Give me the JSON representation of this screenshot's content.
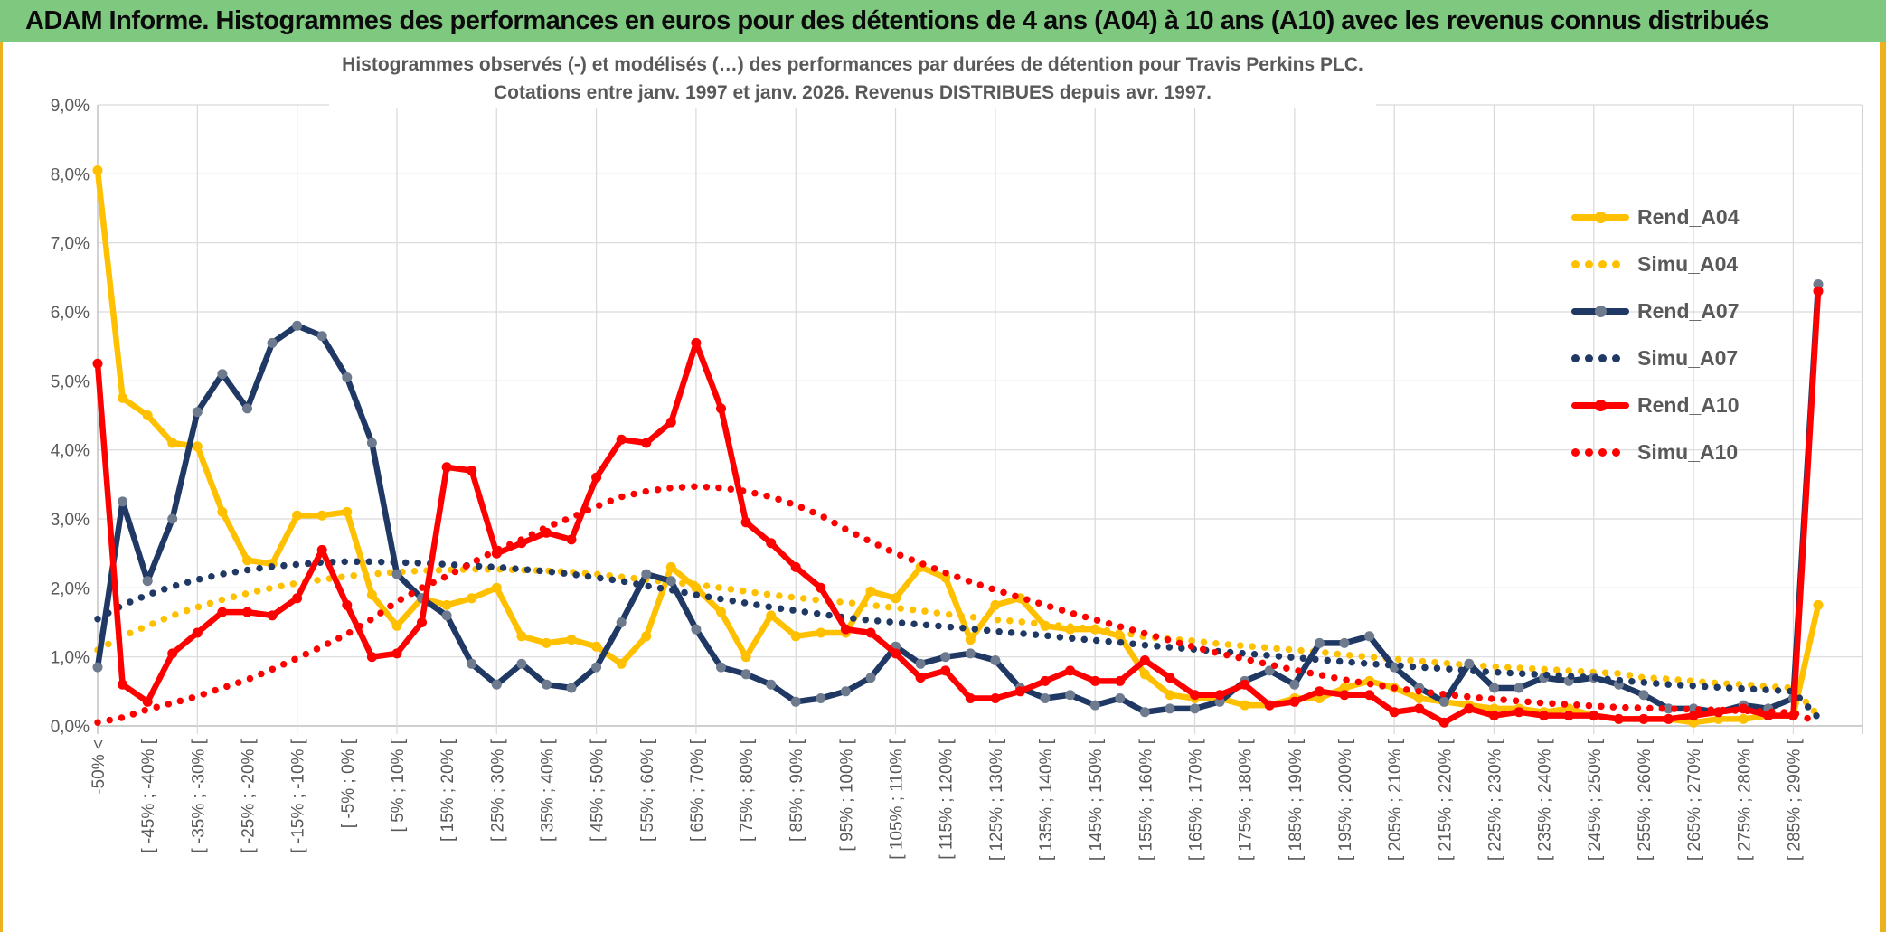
{
  "banner": {
    "title": "ADAM Informe. Histogrammes des performances en euros pour des détentions de 4 ans (A04) à 10 ans (A10) avec les revenus connus distribués",
    "bg_color": "#7EC87F",
    "frame_color": "#EDB120"
  },
  "chart_data": {
    "type": "line",
    "title_line1": "Histogrammes observés (-) et modélisés (…) des performances par durées de détention pour Travis Perkins PLC.",
    "title_line2": "Cotations entre janv. 1997 et janv. 2026. Revenus DISTRIBUES depuis avr. 1997.",
    "ylim": [
      0,
      9
    ],
    "grid": true,
    "legend_position": "upper-right-inside",
    "y_tick_labels": [
      "0,0%",
      "1,0%",
      "2,0%",
      "3,0%",
      "4,0%",
      "5,0%",
      "6,0%",
      "7,0%",
      "8,0%",
      "9,0%"
    ],
    "points_per_series": 70,
    "x_label_every": 2,
    "x_tick_labels": [
      "-50% <",
      "[ -45% ; -40% [",
      "[ -35% ; -30% [",
      "[ -25% ; -20% [",
      "[ -15% ; -10% [",
      "[ -5% ; 0% [",
      "[ 5% ; 10% [",
      "[ 15% ; 20% [",
      "[ 25% ; 30% [",
      "[ 35% ; 40% [",
      "[ 45% ; 50% [",
      "[ 55% ; 60% [",
      "[ 65% ; 70% [",
      "[ 75% ; 80% [",
      "[ 85% ; 90% [",
      "[ 95% ; 100% [",
      "[ 105% ; 110% [",
      "[ 115% ; 120% [",
      "[ 125% ; 130% [",
      "[ 135% ; 140% [",
      "[ 145% ; 150% [",
      "[ 155% ; 160% [",
      "[ 165% ; 170% [",
      "[ 175% ; 180% [",
      "[ 185% ; 190% [",
      "[ 195% ; 200% [",
      "[ 205% ; 210% [",
      "[ 215% ; 220% [",
      "[ 225% ; 230% [",
      "[ 235% ; 240% [",
      "[ 245% ; 250% [",
      "[ 255% ; 260% [",
      "[ 265% ; 270% [",
      "[ 275% ; 280% [",
      "[ 285% ; 290% ["
    ],
    "colors": {
      "grid": "#D9D9D9",
      "axis": "#BFBFBF",
      "text": "#595959"
    },
    "series": [
      {
        "name": "Rend_A04",
        "style": "solid",
        "color": "#FFC000",
        "marker_color": "#FFC000",
        "values": [
          8.05,
          4.75,
          4.5,
          4.1,
          4.05,
          3.1,
          2.4,
          2.35,
          3.05,
          3.05,
          3.1,
          1.9,
          1.45,
          1.85,
          1.75,
          1.85,
          2.0,
          1.3,
          1.2,
          1.25,
          1.15,
          0.9,
          1.3,
          2.3,
          2.0,
          1.65,
          1.0,
          1.6,
          1.3,
          1.35,
          1.35,
          1.95,
          1.85,
          2.3,
          2.15,
          1.25,
          1.75,
          1.85,
          1.45,
          1.4,
          1.4,
          1.3,
          0.75,
          0.45,
          0.4,
          0.4,
          0.3,
          0.3,
          0.4,
          0.4,
          0.55,
          0.65,
          0.55,
          0.4,
          0.35,
          0.3,
          0.25,
          0.25,
          0.2,
          0.25,
          0.15,
          0.1,
          0.1,
          0.1,
          0.05,
          0.1,
          0.1,
          0.15,
          0.15,
          1.75
        ]
      },
      {
        "name": "Simu_A04",
        "style": "dotted",
        "color": "#FFC000",
        "values": [
          1.1,
          1.3,
          1.45,
          1.6,
          1.72,
          1.83,
          1.92,
          2.0,
          2.07,
          2.12,
          2.17,
          2.2,
          2.23,
          2.25,
          2.26,
          2.27,
          2.27,
          2.26,
          2.25,
          2.23,
          2.2,
          2.16,
          2.12,
          2.08,
          2.05,
          2.0,
          1.95,
          1.9,
          1.86,
          1.82,
          1.79,
          1.75,
          1.71,
          1.67,
          1.62,
          1.58,
          1.54,
          1.51,
          1.47,
          1.44,
          1.4,
          1.36,
          1.29,
          1.26,
          1.23,
          1.19,
          1.16,
          1.13,
          1.1,
          1.07,
          1.03,
          1.0,
          0.97,
          0.94,
          0.91,
          0.88,
          0.86,
          0.84,
          0.82,
          0.8,
          0.78,
          0.76,
          0.7,
          0.68,
          0.65,
          0.62,
          0.6,
          0.57,
          0.55,
          0.15
        ]
      },
      {
        "name": "Rend_A07",
        "style": "solid",
        "color": "#1F3864",
        "marker_color": "#6E7B8F",
        "values": [
          0.85,
          3.25,
          2.1,
          3.0,
          4.55,
          5.1,
          4.6,
          5.55,
          5.8,
          5.65,
          5.05,
          4.1,
          2.2,
          1.85,
          1.6,
          0.9,
          0.6,
          0.9,
          0.6,
          0.55,
          0.85,
          1.5,
          2.2,
          2.1,
          1.4,
          0.85,
          0.75,
          0.6,
          0.35,
          0.4,
          0.5,
          0.7,
          1.15,
          0.9,
          1.0,
          1.05,
          0.95,
          0.55,
          0.4,
          0.45,
          0.3,
          0.4,
          0.2,
          0.25,
          0.25,
          0.35,
          0.65,
          0.8,
          0.6,
          1.2,
          1.2,
          1.3,
          0.85,
          0.55,
          0.35,
          0.9,
          0.55,
          0.55,
          0.7,
          0.65,
          0.7,
          0.6,
          0.45,
          0.25,
          0.25,
          0.2,
          0.3,
          0.25,
          0.4,
          6.4
        ]
      },
      {
        "name": "Simu_A07",
        "style": "dotted",
        "color": "#1F3864",
        "values": [
          1.55,
          1.75,
          1.9,
          2.02,
          2.12,
          2.2,
          2.26,
          2.31,
          2.34,
          2.37,
          2.38,
          2.38,
          2.37,
          2.36,
          2.34,
          2.32,
          2.3,
          2.27,
          2.24,
          2.2,
          2.15,
          2.1,
          2.03,
          1.97,
          1.9,
          1.84,
          1.78,
          1.72,
          1.67,
          1.62,
          1.57,
          1.53,
          1.5,
          1.47,
          1.44,
          1.41,
          1.37,
          1.34,
          1.31,
          1.27,
          1.24,
          1.21,
          1.17,
          1.14,
          1.11,
          1.08,
          1.05,
          1.02,
          0.99,
          0.96,
          0.93,
          0.9,
          0.88,
          0.85,
          0.83,
          0.8,
          0.78,
          0.76,
          0.74,
          0.72,
          0.7,
          0.66,
          0.63,
          0.6,
          0.58,
          0.56,
          0.54,
          0.52,
          0.5,
          0.12
        ]
      },
      {
        "name": "Rend_A10",
        "style": "solid",
        "color": "#FF0000",
        "marker_color": "#FF0000",
        "values": [
          5.25,
          0.6,
          0.35,
          1.05,
          1.35,
          1.65,
          1.65,
          1.6,
          1.85,
          2.55,
          1.75,
          1.0,
          1.05,
          1.5,
          3.75,
          3.7,
          2.5,
          2.65,
          2.8,
          2.7,
          3.6,
          4.15,
          4.1,
          4.4,
          5.55,
          4.6,
          2.95,
          2.65,
          2.3,
          2.0,
          1.4,
          1.35,
          1.05,
          0.7,
          0.8,
          0.4,
          0.4,
          0.5,
          0.65,
          0.8,
          0.65,
          0.65,
          0.95,
          0.7,
          0.45,
          0.45,
          0.6,
          0.3,
          0.35,
          0.5,
          0.45,
          0.45,
          0.2,
          0.25,
          0.05,
          0.25,
          0.15,
          0.2,
          0.15,
          0.15,
          0.15,
          0.1,
          0.1,
          0.1,
          0.15,
          0.2,
          0.25,
          0.15,
          0.15,
          6.3
        ]
      },
      {
        "name": "Simu_A10",
        "style": "dotted",
        "color": "#FF0000",
        "values": [
          0.05,
          0.12,
          0.24,
          0.33,
          0.43,
          0.55,
          0.67,
          0.82,
          0.98,
          1.15,
          1.33,
          1.55,
          1.8,
          2.0,
          2.17,
          2.36,
          2.55,
          2.7,
          2.88,
          3.02,
          3.18,
          3.32,
          3.4,
          3.45,
          3.47,
          3.45,
          3.4,
          3.32,
          3.2,
          3.05,
          2.85,
          2.67,
          2.5,
          2.36,
          2.22,
          2.09,
          1.97,
          1.86,
          1.75,
          1.64,
          1.54,
          1.44,
          1.34,
          1.24,
          1.14,
          1.05,
          0.97,
          0.89,
          0.81,
          0.74,
          0.67,
          0.61,
          0.55,
          0.5,
          0.46,
          0.42,
          0.39,
          0.36,
          0.33,
          0.31,
          0.29,
          0.27,
          0.26,
          0.25,
          0.24,
          0.23,
          0.22,
          0.21,
          0.19,
          0.05
        ]
      }
    ]
  }
}
